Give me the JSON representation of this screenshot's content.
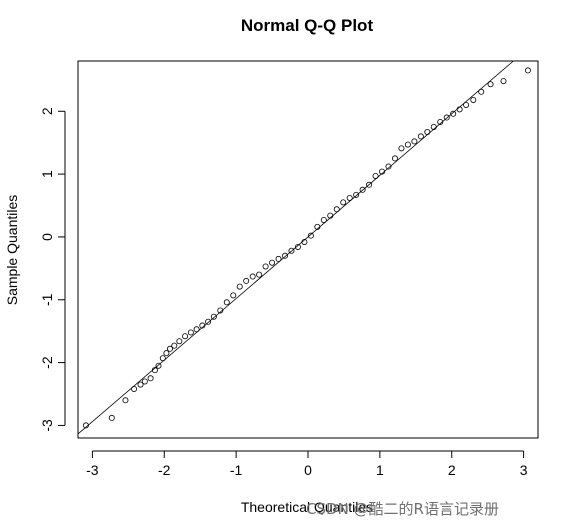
{
  "watermark": "CSDN @酷二的R语言记录册",
  "chart_data": {
    "type": "scatter",
    "title": "Normal Q-Q Plot",
    "xlabel": "Theoretical Quantiles",
    "ylabel": "Sample Quantiles",
    "xlim": [
      -3.2,
      3.2
    ],
    "ylim": [
      -3.2,
      2.8
    ],
    "xticks": [
      -3,
      -2,
      -1,
      0,
      1,
      2,
      3
    ],
    "yticks": [
      -3,
      -2,
      -1,
      0,
      1,
      2
    ],
    "reference_line": {
      "intercept": 0.0,
      "slope": 0.98
    },
    "points": {
      "x": [
        -3.09,
        -2.73,
        -2.54,
        -2.42,
        -2.33,
        -2.27,
        -2.19,
        -2.13,
        -2.08,
        -2.02,
        -1.97,
        -1.92,
        -1.86,
        -1.79,
        -1.71,
        -1.63,
        -1.55,
        -1.47,
        -1.39,
        -1.31,
        -1.22,
        -1.13,
        -1.04,
        -0.95,
        -0.86,
        -0.77,
        -0.68,
        -0.59,
        -0.5,
        -0.41,
        -0.32,
        -0.23,
        -0.14,
        -0.05,
        0.04,
        0.13,
        0.22,
        0.31,
        0.4,
        0.49,
        0.58,
        0.67,
        0.76,
        0.85,
        0.94,
        1.03,
        1.12,
        1.21,
        1.3,
        1.39,
        1.48,
        1.57,
        1.66,
        1.75,
        1.84,
        1.93,
        2.02,
        2.11,
        2.2,
        2.3,
        2.41,
        2.54,
        2.72,
        3.06
      ],
      "y": [
        -3.0,
        -2.88,
        -2.6,
        -2.42,
        -2.35,
        -2.3,
        -2.25,
        -2.12,
        -2.05,
        -1.93,
        -1.85,
        -1.78,
        -1.73,
        -1.66,
        -1.58,
        -1.52,
        -1.47,
        -1.41,
        -1.35,
        -1.27,
        -1.17,
        -1.04,
        -0.93,
        -0.79,
        -0.7,
        -0.63,
        -0.6,
        -0.47,
        -0.41,
        -0.35,
        -0.3,
        -0.22,
        -0.16,
        -0.08,
        0.02,
        0.16,
        0.27,
        0.34,
        0.44,
        0.55,
        0.62,
        0.67,
        0.75,
        0.83,
        0.97,
        1.04,
        1.12,
        1.25,
        1.41,
        1.47,
        1.52,
        1.6,
        1.67,
        1.75,
        1.83,
        1.9,
        1.96,
        2.03,
        2.1,
        2.18,
        2.31,
        2.43,
        2.48,
        2.65
      ]
    }
  }
}
